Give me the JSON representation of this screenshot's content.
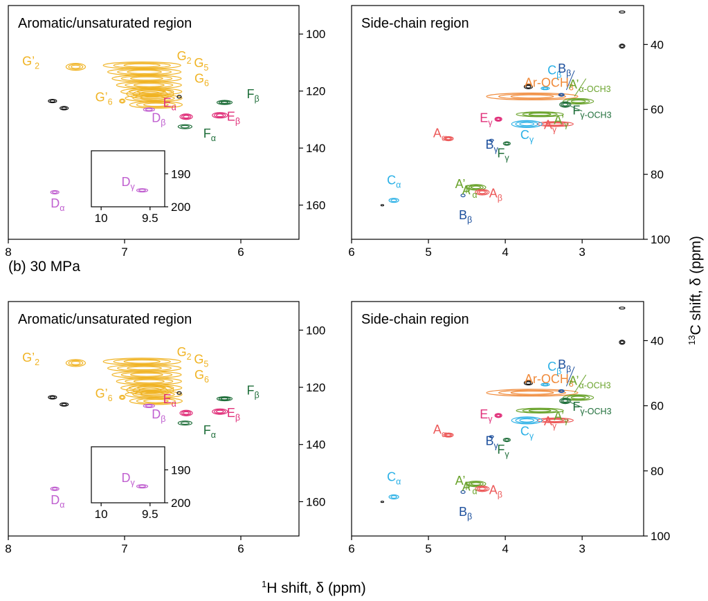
{
  "panel_labels": [
    "",
    "(b) 30 MPa"
  ],
  "axis": {
    "x_label_sup": "1",
    "x_label_main": "H shift, δ (ppm)",
    "y_label_sup": "13",
    "y_label_main": "C shift, δ (ppm)"
  },
  "colors": {
    "G": "#f0b323",
    "D": "#c060d0",
    "E": "#e0307a",
    "F": "#1f6e3a",
    "A": "#ec5a5a",
    "A_prime": "#6aa32c",
    "B": "#1c4f9c",
    "C": "#2ab0e6",
    "ArOCH3": "#f08a3a",
    "other": "#111111"
  },
  "chart_data": [
    {
      "type": "scatter",
      "title": "Aromatic/unsaturated region",
      "pressure": "",
      "x_range_ppm": [
        8.0,
        5.5
      ],
      "y_range_ppm": [
        90,
        172
      ],
      "x_ticks": [
        8,
        7,
        6
      ],
      "y_ticks": [
        100,
        120,
        140,
        160
      ],
      "y_axis_side": "right",
      "peaks": [
        {
          "label": "G",
          "sub": "2",
          "h": 6.55,
          "c": 114.0,
          "color": "G"
        },
        {
          "label": "G",
          "sub": "5",
          "h": 6.45,
          "c": 116.5,
          "color": "G"
        },
        {
          "label": "G",
          "sub": "6",
          "h": 6.47,
          "c": 120.0,
          "color": "G"
        },
        {
          "label": "G’",
          "sub": "2",
          "h": 7.44,
          "c": 112.5,
          "color": "G"
        },
        {
          "label": "G’",
          "sub": "6",
          "h": 6.99,
          "c": 125.5,
          "color": "G"
        },
        {
          "label": "D",
          "sub": "β",
          "h": 6.79,
          "c": 127.5,
          "color": "D"
        },
        {
          "label": "E",
          "sub": "α",
          "h": 6.55,
          "c": 128.5,
          "color": "E"
        },
        {
          "label": "E",
          "sub": "β",
          "h": 6.12,
          "c": 128.5,
          "color": "E"
        },
        {
          "label": "F",
          "sub": "α",
          "h": 6.43,
          "c": 133.0,
          "color": "F"
        },
        {
          "label": "F",
          "sub": "β",
          "h": 6.08,
          "c": 124.0,
          "color": "F"
        },
        {
          "label": "D",
          "sub": "α",
          "h": 7.6,
          "c": 156.0,
          "color": "D"
        }
      ],
      "inset": {
        "x_ticks": [
          10,
          9.5
        ],
        "y_ticks": [
          190,
          200
        ],
        "peak": {
          "label": "D",
          "sub": "γ",
          "h": 9.58,
          "c": 195.0
        }
      }
    },
    {
      "type": "scatter",
      "title": "Side-chain region",
      "pressure": "",
      "x_range_ppm": [
        6.0,
        2.2
      ],
      "y_range_ppm": [
        28,
        100
      ],
      "x_ticks": [
        6,
        5,
        4,
        3
      ],
      "y_ticks": [
        40,
        60,
        80,
        100
      ],
      "y_axis_side": "right",
      "peaks": [
        {
          "label": "Ar-OCH",
          "sub": "3",
          "h": 3.75,
          "c": 56.0,
          "color": "ArOCH3"
        },
        {
          "label": "C",
          "sub": "β",
          "h": 3.45,
          "c": 53.5,
          "color": "C"
        },
        {
          "label": "B",
          "sub": "β",
          "h": 3.28,
          "c": 55.0,
          "color": "B"
        },
        {
          "label": "A’",
          "sub": "α-OCH3",
          "h": 3.12,
          "c": 57.0,
          "color": "A_prime"
        },
        {
          "label": "F",
          "sub": "γ-OCH3",
          "h": 3.25,
          "c": 59.0,
          "color": "F"
        },
        {
          "label": "E",
          "sub": "γ",
          "h": 4.08,
          "c": 63.0,
          "color": "E"
        },
        {
          "label": "A",
          "sub": "γ",
          "h": 3.3,
          "c": 63.0,
          "color": "A"
        },
        {
          "label": "A’",
          "sub": "γ",
          "h": 3.35,
          "c": 61.5,
          "color": "A_prime"
        },
        {
          "label": "C",
          "sub": "γ",
          "h": 3.75,
          "c": 64.0,
          "color": "C"
        },
        {
          "label": "B",
          "sub": "γ",
          "h": 4.15,
          "c": 69.5,
          "color": "B"
        },
        {
          "label": "F",
          "sub": "γ",
          "h": 3.98,
          "c": 70.5,
          "color": "F"
        },
        {
          "label": "A",
          "sub": "α",
          "h": 4.74,
          "c": 72.0,
          "color": "A"
        },
        {
          "label": "A’",
          "sub": "α",
          "h": 4.4,
          "c": 84.0,
          "color": "A_prime"
        },
        {
          "label": "A’",
          "sub": "β",
          "h": 4.4,
          "c": 83.0,
          "color": "A_prime"
        },
        {
          "label": "A",
          "sub": "β",
          "h": 4.3,
          "c": 85.0,
          "color": "A"
        },
        {
          "label": "B",
          "sub": "β",
          "h": 4.55,
          "c": 87.0,
          "color": "B"
        },
        {
          "label": "C",
          "sub": "α",
          "h": 5.45,
          "c": 86.5,
          "color": "C"
        }
      ]
    },
    {
      "type": "scatter",
      "title": "Aromatic/unsaturated region",
      "pressure": "30 MPa",
      "x_range_ppm": [
        8.0,
        5.5
      ],
      "y_range_ppm": [
        90,
        172
      ],
      "x_ticks": [
        8,
        7,
        6
      ],
      "y_ticks": [
        100,
        120,
        140,
        160
      ],
      "y_axis_side": "right",
      "peaks": [
        {
          "label": "G",
          "sub": "2",
          "h": 6.55,
          "c": 114.0,
          "color": "G"
        },
        {
          "label": "G",
          "sub": "5",
          "h": 6.45,
          "c": 116.5,
          "color": "G"
        },
        {
          "label": "G",
          "sub": "6",
          "h": 6.47,
          "c": 120.0,
          "color": "G"
        },
        {
          "label": "G’",
          "sub": "2",
          "h": 7.44,
          "c": 112.5,
          "color": "G"
        },
        {
          "label": "G’",
          "sub": "6",
          "h": 6.99,
          "c": 125.5,
          "color": "G"
        },
        {
          "label": "D",
          "sub": "β",
          "h": 6.79,
          "c": 127.5,
          "color": "D"
        },
        {
          "label": "E",
          "sub": "α",
          "h": 6.55,
          "c": 128.5,
          "color": "E"
        },
        {
          "label": "E",
          "sub": "β",
          "h": 6.12,
          "c": 128.5,
          "color": "E"
        },
        {
          "label": "F",
          "sub": "α",
          "h": 6.43,
          "c": 133.0,
          "color": "F"
        },
        {
          "label": "F",
          "sub": "β",
          "h": 6.08,
          "c": 124.0,
          "color": "F"
        },
        {
          "label": "D",
          "sub": "α",
          "h": 7.6,
          "c": 156.0,
          "color": "D"
        }
      ],
      "inset": {
        "x_ticks": [
          10,
          9.5
        ],
        "y_ticks": [
          190,
          200
        ],
        "peak": {
          "label": "D",
          "sub": "γ",
          "h": 9.58,
          "c": 195.0
        }
      }
    },
    {
      "type": "scatter",
      "title": "Side-chain region",
      "pressure": "30 MPa",
      "x_range_ppm": [
        6.0,
        2.2
      ],
      "y_range_ppm": [
        28,
        100
      ],
      "x_ticks": [
        6,
        5,
        4,
        3
      ],
      "y_ticks": [
        40,
        60,
        80,
        100
      ],
      "y_axis_side": "right",
      "peaks": [
        {
          "label": "Ar-OCH",
          "sub": "3",
          "h": 3.75,
          "c": 56.0,
          "color": "ArOCH3"
        },
        {
          "label": "C",
          "sub": "β",
          "h": 3.45,
          "c": 53.5,
          "color": "C"
        },
        {
          "label": "B",
          "sub": "β",
          "h": 3.28,
          "c": 55.0,
          "color": "B"
        },
        {
          "label": "A’",
          "sub": "α-OCH3",
          "h": 3.12,
          "c": 57.0,
          "color": "A_prime"
        },
        {
          "label": "F",
          "sub": "γ-OCH3",
          "h": 3.25,
          "c": 59.0,
          "color": "F"
        },
        {
          "label": "E",
          "sub": "γ",
          "h": 4.08,
          "c": 63.0,
          "color": "E"
        },
        {
          "label": "A",
          "sub": "γ",
          "h": 3.3,
          "c": 63.0,
          "color": "A"
        },
        {
          "label": "A’",
          "sub": "γ",
          "h": 3.35,
          "c": 61.5,
          "color": "A_prime"
        },
        {
          "label": "C",
          "sub": "γ",
          "h": 3.75,
          "c": 64.0,
          "color": "C"
        },
        {
          "label": "B",
          "sub": "γ",
          "h": 4.15,
          "c": 69.5,
          "color": "B"
        },
        {
          "label": "F",
          "sub": "γ",
          "h": 3.98,
          "c": 70.5,
          "color": "F"
        },
        {
          "label": "A",
          "sub": "α",
          "h": 4.74,
          "c": 72.0,
          "color": "A"
        },
        {
          "label": "A’",
          "sub": "α",
          "h": 4.4,
          "c": 84.0,
          "color": "A_prime"
        },
        {
          "label": "A’",
          "sub": "β",
          "h": 4.4,
          "c": 83.0,
          "color": "A_prime"
        },
        {
          "label": "A",
          "sub": "β",
          "h": 4.3,
          "c": 85.0,
          "color": "A"
        },
        {
          "label": "B",
          "sub": "β",
          "h": 4.55,
          "c": 87.0,
          "color": "B"
        },
        {
          "label": "C",
          "sub": "α",
          "h": 5.45,
          "c": 86.5,
          "color": "C"
        }
      ]
    }
  ]
}
